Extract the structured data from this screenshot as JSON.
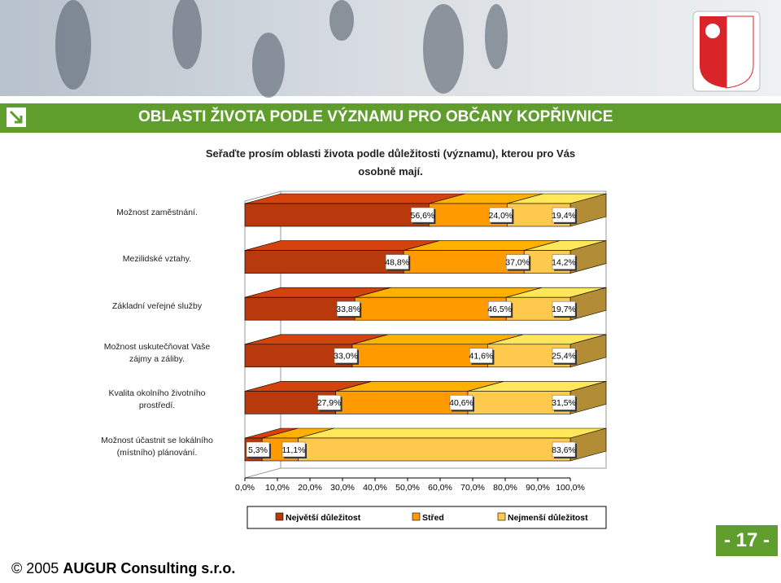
{
  "slide": {
    "title": "OBLASTI ŽIVOTA PODLE VÝZNAMU PRO OBČANY KOPŘIVNICE",
    "page_number": "- 17 -"
  },
  "chart_data": {
    "type": "bar",
    "orientation": "horizontal",
    "stacked": true,
    "title": "Seřaďte prosím oblasti života podle důležitosti (významu), kterou pro Vás\nosobně mají.",
    "categories": [
      "Možnost zaměstnání.",
      "Mezilidské vztahy.",
      "Základní veřejné služby",
      "Možnost uskutečňovat Vaše\nzájmy a záliby.",
      "Kvalita okolního životního\nprostředí.",
      "Možnost účastnit se lokálního\n(místního) plánování."
    ],
    "series": [
      {
        "name": "Největší důležitost",
        "color": "#b83a0c",
        "values": [
          56.6,
          48.8,
          33.8,
          33.0,
          27.9,
          5.3
        ],
        "value_labels": [
          "56,6%",
          "48,8%",
          "33,8%",
          "33,0%",
          "27,9%",
          "5,3%"
        ]
      },
      {
        "name": "Střed",
        "color": "#ff9a00",
        "values": [
          24.0,
          37.0,
          46.5,
          41.6,
          40.6,
          11.1
        ],
        "value_labels": [
          "24,0%",
          "37,0%",
          "46,5%",
          "41,6%",
          "40,6%",
          "11,1%"
        ]
      },
      {
        "name": "Nejmenší důležitost",
        "color": "#ffc94d",
        "values": [
          19.4,
          14.2,
          19.7,
          25.4,
          31.5,
          83.6
        ],
        "value_labels": [
          "19,4%",
          "14,2%",
          "19,7%",
          "25,4%",
          "31,5%",
          "83,6%"
        ]
      }
    ],
    "xlim": [
      0,
      100
    ],
    "xticks": [
      {
        "value": 0,
        "label": "0,0%"
      },
      {
        "value": 10,
        "label": "10,0%"
      },
      {
        "value": 20,
        "label": "20,0%"
      },
      {
        "value": 30,
        "label": "30,0%"
      },
      {
        "value": 40,
        "label": "40,0%"
      },
      {
        "value": 50,
        "label": "50,0%"
      },
      {
        "value": 60,
        "label": "60,0%"
      },
      {
        "value": 70,
        "label": "70,0%"
      },
      {
        "value": 80,
        "label": "80,0%"
      },
      {
        "value": 90,
        "label": "90,0%"
      },
      {
        "value": 100,
        "label": "100,0%"
      }
    ]
  },
  "footer": {
    "copyright": "© 2005",
    "company": "AUGUR Consulting s.r.o."
  }
}
